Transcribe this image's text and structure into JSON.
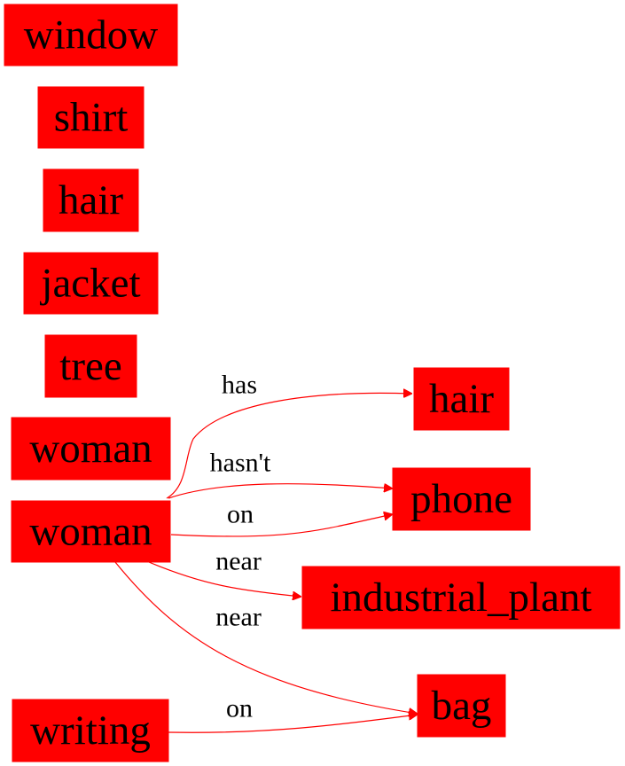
{
  "colors": {
    "node_fill": "#ff0000",
    "edge": "#ff0000",
    "text": "#000000"
  },
  "nodes": {
    "window": "window",
    "shirt": "shirt",
    "hair_left": "hair",
    "jacket": "jacket",
    "tree": "tree",
    "woman_top": "woman",
    "woman_main": "woman",
    "writing": "writing",
    "hair_right": "hair",
    "phone": "phone",
    "industrial_plant": "industrial_plant",
    "bag": "bag"
  },
  "edges": [
    {
      "from": "woman_main",
      "to": "hair_right",
      "label": "has"
    },
    {
      "from": "woman_main",
      "to": "phone",
      "label": "hasn't"
    },
    {
      "from": "woman_main",
      "to": "phone",
      "label": "on"
    },
    {
      "from": "woman_main",
      "to": "industrial_plant",
      "label": "near"
    },
    {
      "from": "woman_main",
      "to": "bag",
      "label": "near"
    },
    {
      "from": "writing",
      "to": "bag",
      "label": "on"
    }
  ]
}
